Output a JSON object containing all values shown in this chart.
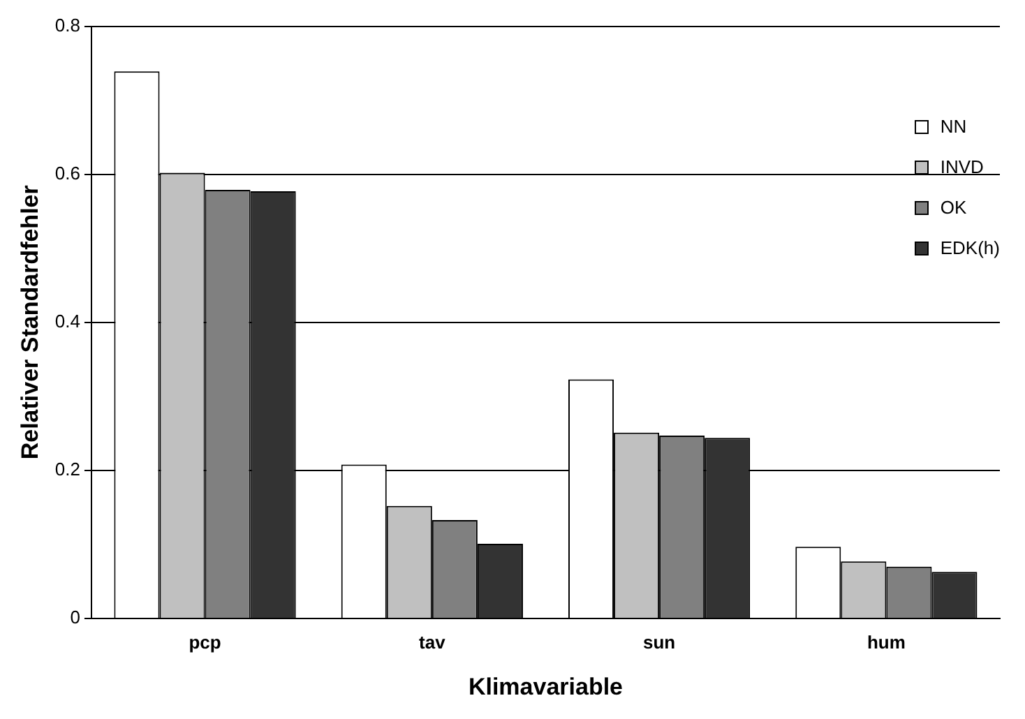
{
  "chart_data": {
    "type": "bar",
    "xlabel": "Klimavariable",
    "ylabel": "Relativer Standardfehler",
    "categories": [
      "pcp",
      "tav",
      "sun",
      "hum"
    ],
    "series": [
      {
        "name": "NN",
        "color": "#ffffff",
        "values": [
          0.739,
          0.208,
          0.323,
          0.097
        ]
      },
      {
        "name": "INVD",
        "color": "#c0c0c0",
        "values": [
          0.602,
          0.152,
          0.251,
          0.077
        ]
      },
      {
        "name": "OK",
        "color": "#808080",
        "values": [
          0.579,
          0.133,
          0.247,
          0.07
        ]
      },
      {
        "name": "EDK(h)",
        "color": "#333333",
        "values": [
          0.577,
          0.101,
          0.244,
          0.063
        ]
      }
    ],
    "ylim": [
      0,
      0.8
    ],
    "yticks": [
      0,
      0.2,
      0.4,
      0.6,
      0.8
    ],
    "grid": "y",
    "legend": "top right"
  }
}
